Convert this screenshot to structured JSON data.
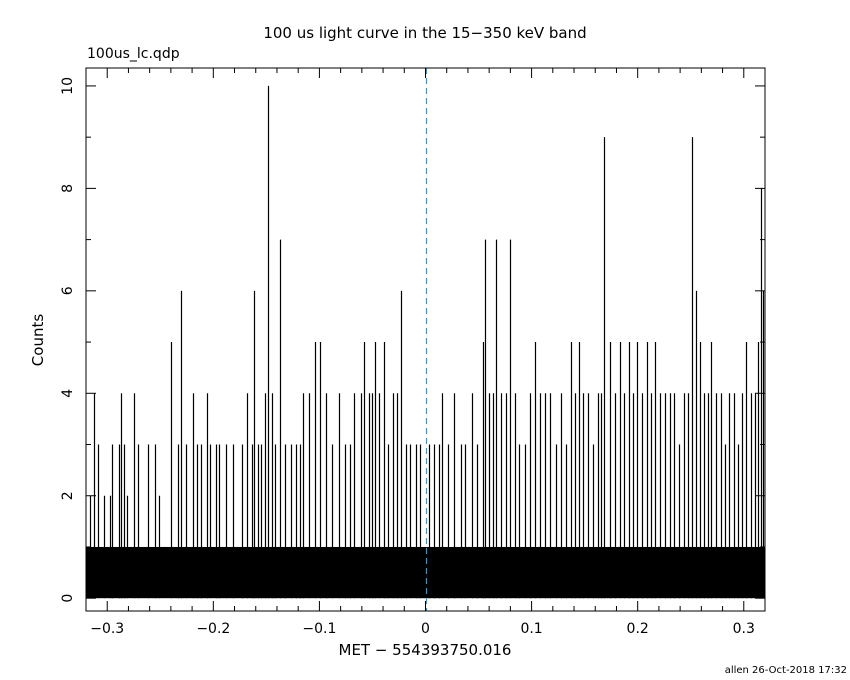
{
  "chart_data": {
    "type": "bar",
    "title": "100 us light curve in the 15−350 keV band",
    "file_label": "100us_lc.qdp",
    "xlabel": "MET − 554393750.016",
    "ylabel": "Counts",
    "footer": "allen 26-Oct-2018 17:32",
    "xlim": [
      -0.32,
      0.32
    ],
    "ylim": [
      -0.25,
      10.35
    ],
    "x_ticks": [
      -0.3,
      -0.2,
      -0.1,
      0,
      0.1,
      0.2,
      0.3
    ],
    "x_tick_labels": [
      "−0.3",
      "−0.2",
      "−0.1",
      "0",
      "0.1",
      "0.2",
      "0.3"
    ],
    "y_ticks": [
      0,
      2,
      4,
      6,
      8,
      10
    ],
    "y_tick_labels": [
      "0",
      "2",
      "4",
      "6",
      "8",
      "10"
    ],
    "bin_width": 0.0001,
    "baseline_level": 1,
    "reference_line_x": 0,
    "reference_line_color": "#3399cc",
    "peaks": [
      {
        "x": -0.316,
        "y": 2
      },
      {
        "x": -0.3125,
        "y": 4
      },
      {
        "x": -0.309,
        "y": 3
      },
      {
        "x": -0.303,
        "y": 2
      },
      {
        "x": -0.297,
        "y": 2
      },
      {
        "x": -0.2955,
        "y": 3
      },
      {
        "x": -0.289,
        "y": 3
      },
      {
        "x": -0.287,
        "y": 4
      },
      {
        "x": -0.2838,
        "y": 3
      },
      {
        "x": -0.2815,
        "y": 2
      },
      {
        "x": -0.2745,
        "y": 4
      },
      {
        "x": -0.271,
        "y": 3
      },
      {
        "x": -0.262,
        "y": 3
      },
      {
        "x": -0.2545,
        "y": 3
      },
      {
        "x": -0.251,
        "y": 2
      },
      {
        "x": -0.2395,
        "y": 5
      },
      {
        "x": -0.233,
        "y": 3
      },
      {
        "x": -0.2305,
        "y": 6
      },
      {
        "x": -0.226,
        "y": 3
      },
      {
        "x": -0.219,
        "y": 4
      },
      {
        "x": -0.2155,
        "y": 3
      },
      {
        "x": -0.212,
        "y": 3
      },
      {
        "x": -0.2055,
        "y": 4
      },
      {
        "x": -0.203,
        "y": 3
      },
      {
        "x": -0.1975,
        "y": 3
      },
      {
        "x": -0.1945,
        "y": 3
      },
      {
        "x": -0.188,
        "y": 3
      },
      {
        "x": -0.1818,
        "y": 3
      },
      {
        "x": -0.1725,
        "y": 3
      },
      {
        "x": -0.168,
        "y": 4
      },
      {
        "x": -0.1635,
        "y": 3
      },
      {
        "x": -0.1613,
        "y": 6
      },
      {
        "x": -0.158,
        "y": 3
      },
      {
        "x": -0.1548,
        "y": 3
      },
      {
        "x": -0.151,
        "y": 4
      },
      {
        "x": -0.1485,
        "y": 10
      },
      {
        "x": -0.145,
        "y": 4
      },
      {
        "x": -0.142,
        "y": 3
      },
      {
        "x": -0.1368,
        "y": 7
      },
      {
        "x": -0.132,
        "y": 3
      },
      {
        "x": -0.127,
        "y": 3
      },
      {
        "x": -0.1225,
        "y": 3
      },
      {
        "x": -0.1185,
        "y": 3
      },
      {
        "x": -0.115,
        "y": 4
      },
      {
        "x": -0.11,
        "y": 4
      },
      {
        "x": -0.104,
        "y": 5
      },
      {
        "x": -0.0995,
        "y": 5
      },
      {
        "x": -0.094,
        "y": 4
      },
      {
        "x": -0.0885,
        "y": 3
      },
      {
        "x": -0.0815,
        "y": 4
      },
      {
        "x": -0.076,
        "y": 3
      },
      {
        "x": -0.0715,
        "y": 3
      },
      {
        "x": -0.067,
        "y": 4
      },
      {
        "x": -0.0605,
        "y": 4
      },
      {
        "x": -0.0575,
        "y": 5
      },
      {
        "x": -0.0535,
        "y": 4
      },
      {
        "x": -0.05,
        "y": 4
      },
      {
        "x": -0.0478,
        "y": 5
      },
      {
        "x": -0.044,
        "y": 4
      },
      {
        "x": -0.0395,
        "y": 5
      },
      {
        "x": -0.0355,
        "y": 3
      },
      {
        "x": -0.031,
        "y": 4
      },
      {
        "x": -0.0265,
        "y": 4
      },
      {
        "x": -0.0235,
        "y": 6
      },
      {
        "x": -0.018,
        "y": 3
      },
      {
        "x": -0.0145,
        "y": 3
      },
      {
        "x": -0.009,
        "y": 3
      },
      {
        "x": -0.0055,
        "y": 3
      },
      {
        "x": 0.0035,
        "y": 3
      },
      {
        "x": 0.008,
        "y": 3
      },
      {
        "x": 0.0125,
        "y": 3
      },
      {
        "x": 0.016,
        "y": 4
      },
      {
        "x": 0.021,
        "y": 3
      },
      {
        "x": 0.027,
        "y": 4
      },
      {
        "x": 0.033,
        "y": 3
      },
      {
        "x": 0.0375,
        "y": 3
      },
      {
        "x": 0.044,
        "y": 4
      },
      {
        "x": 0.049,
        "y": 3
      },
      {
        "x": 0.0545,
        "y": 5
      },
      {
        "x": 0.0565,
        "y": 7
      },
      {
        "x": 0.0595,
        "y": 4
      },
      {
        "x": 0.0635,
        "y": 4
      },
      {
        "x": 0.0665,
        "y": 7
      },
      {
        "x": 0.0715,
        "y": 4
      },
      {
        "x": 0.0755,
        "y": 4
      },
      {
        "x": 0.0795,
        "y": 7
      },
      {
        "x": 0.084,
        "y": 4
      },
      {
        "x": 0.088,
        "y": 3
      },
      {
        "x": 0.0935,
        "y": 3
      },
      {
        "x": 0.0985,
        "y": 4
      },
      {
        "x": 0.1035,
        "y": 5
      },
      {
        "x": 0.1075,
        "y": 4
      },
      {
        "x": 0.1125,
        "y": 4
      },
      {
        "x": 0.1175,
        "y": 4
      },
      {
        "x": 0.1228,
        "y": 3
      },
      {
        "x": 0.1275,
        "y": 4
      },
      {
        "x": 0.1325,
        "y": 3
      },
      {
        "x": 0.1375,
        "y": 5
      },
      {
        "x": 0.141,
        "y": 4
      },
      {
        "x": 0.1445,
        "y": 5
      },
      {
        "x": 0.148,
        "y": 4
      },
      {
        "x": 0.153,
        "y": 4
      },
      {
        "x": 0.158,
        "y": 3
      },
      {
        "x": 0.1625,
        "y": 4
      },
      {
        "x": 0.1655,
        "y": 4
      },
      {
        "x": 0.1685,
        "y": 9
      },
      {
        "x": 0.1735,
        "y": 5
      },
      {
        "x": 0.1785,
        "y": 4
      },
      {
        "x": 0.1835,
        "y": 5
      },
      {
        "x": 0.1875,
        "y": 4
      },
      {
        "x": 0.1915,
        "y": 5
      },
      {
        "x": 0.1955,
        "y": 4
      },
      {
        "x": 0.1995,
        "y": 5
      },
      {
        "x": 0.2045,
        "y": 4
      },
      {
        "x": 0.2085,
        "y": 5
      },
      {
        "x": 0.2125,
        "y": 4
      },
      {
        "x": 0.2165,
        "y": 5
      },
      {
        "x": 0.2215,
        "y": 4
      },
      {
        "x": 0.2255,
        "y": 4
      },
      {
        "x": 0.2305,
        "y": 4
      },
      {
        "x": 0.2345,
        "y": 4
      },
      {
        "x": 0.2385,
        "y": 3
      },
      {
        "x": 0.2435,
        "y": 4
      },
      {
        "x": 0.2475,
        "y": 4
      },
      {
        "x": 0.251,
        "y": 9
      },
      {
        "x": 0.2545,
        "y": 6
      },
      {
        "x": 0.2585,
        "y": 5
      },
      {
        "x": 0.2625,
        "y": 4
      },
      {
        "x": 0.2665,
        "y": 4
      },
      {
        "x": 0.2695,
        "y": 5
      },
      {
        "x": 0.2735,
        "y": 4
      },
      {
        "x": 0.2785,
        "y": 4
      },
      {
        "x": 0.2825,
        "y": 3
      },
      {
        "x": 0.2865,
        "y": 4
      },
      {
        "x": 0.2905,
        "y": 4
      },
      {
        "x": 0.2945,
        "y": 3
      },
      {
        "x": 0.2985,
        "y": 4
      },
      {
        "x": 0.3025,
        "y": 5
      },
      {
        "x": 0.3065,
        "y": 4
      },
      {
        "x": 0.3105,
        "y": 4
      },
      {
        "x": 0.3135,
        "y": 5
      },
      {
        "x": 0.3165,
        "y": 8
      },
      {
        "x": 0.3185,
        "y": 6
      }
    ]
  }
}
